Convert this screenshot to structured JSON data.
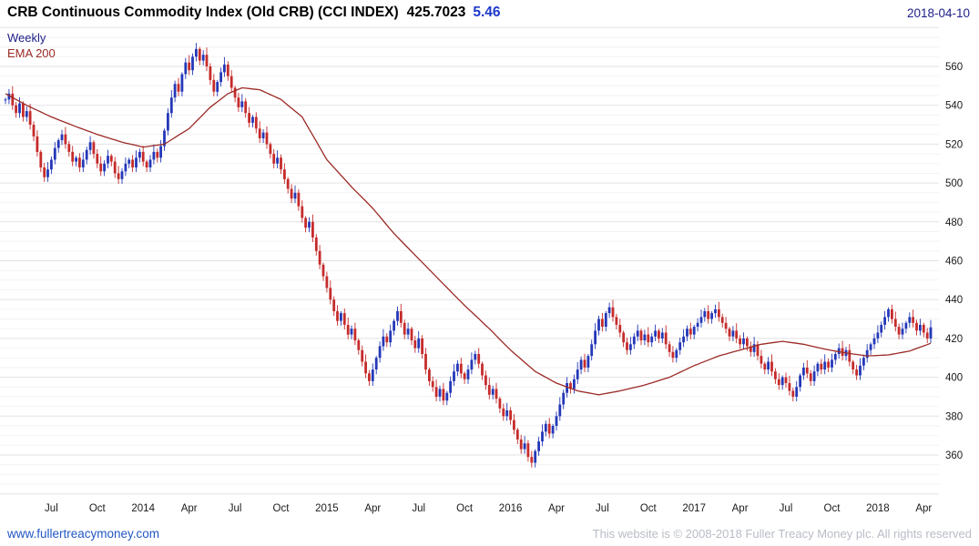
{
  "header": {
    "title": "CRB Continuous Commodity Index (Old CRB) (CCI INDEX)",
    "price": "425.7023",
    "change": "5.46",
    "date": "2018-04-10"
  },
  "legend": {
    "timeframe": "Weekly",
    "overlay": "EMA 200"
  },
  "footer": {
    "link": "www.fullertreacymoney.com",
    "copyright": "This website is © 2008-2018 Fuller Treacy Money plc. All rights reserved"
  },
  "colors": {
    "up": "#2438b8",
    "down": "#c62b2b",
    "ema": "#9a2a25",
    "grid_major": "#e2e2e2",
    "grid_minor": "#f2f2f2",
    "axis_text": "#1a1a1a",
    "change": "#1c39cc",
    "date": "#20208a",
    "link": "#2257c4",
    "copyright": "#b8bcc6"
  },
  "chart_data": {
    "type": "candlestick",
    "title": "CRB Continuous Commodity Index (Old CRB) (CCI INDEX)",
    "timeframe": "Weekly",
    "overlay": "EMA 200",
    "last": {
      "value": 425.7023,
      "change": 5.46,
      "date": "2018-04-10"
    },
    "y_axis": {
      "position": "right",
      "tick_start": 360,
      "tick_end": 560,
      "tick_step": 20,
      "minor_step": 5,
      "plot_min": 340,
      "plot_max": 580
    },
    "x_axis": {
      "labels": [
        {
          "text": "Jul",
          "week": 13
        },
        {
          "text": "Oct",
          "week": 26
        },
        {
          "text": "2014",
          "week": 39
        },
        {
          "text": "Apr",
          "week": 52
        },
        {
          "text": "Jul",
          "week": 65
        },
        {
          "text": "Oct",
          "week": 78
        },
        {
          "text": "2015",
          "week": 91
        },
        {
          "text": "Apr",
          "week": 104
        },
        {
          "text": "Jul",
          "week": 117
        },
        {
          "text": "Oct",
          "week": 130
        },
        {
          "text": "2016",
          "week": 143
        },
        {
          "text": "Apr",
          "week": 156
        },
        {
          "text": "Jul",
          "week": 169
        },
        {
          "text": "Oct",
          "week": 182
        },
        {
          "text": "2017",
          "week": 195
        },
        {
          "text": "Apr",
          "week": 208
        },
        {
          "text": "Jul",
          "week": 221
        },
        {
          "text": "Oct",
          "week": 234
        },
        {
          "text": "2018",
          "week": 247
        },
        {
          "text": "Apr",
          "week": 260
        }
      ]
    },
    "weekly_closes": [
      543,
      546,
      540,
      536,
      541,
      534,
      537,
      530,
      524,
      516,
      508,
      503,
      507,
      512,
      518,
      522,
      525,
      520,
      516,
      511,
      513,
      508,
      512,
      517,
      521,
      515,
      510,
      506,
      510,
      514,
      511,
      505,
      502,
      506,
      510,
      512,
      508,
      513,
      516,
      511,
      508,
      512,
      516,
      513,
      519,
      527,
      536,
      544,
      551,
      547,
      556,
      562,
      558,
      565,
      569,
      563,
      566,
      560,
      553,
      547,
      552,
      557,
      561,
      555,
      549,
      544,
      539,
      542,
      536,
      531,
      534,
      528,
      523,
      526,
      520,
      515,
      510,
      513,
      507,
      502,
      497,
      492,
      495,
      488,
      482,
      477,
      480,
      472,
      465,
      458,
      452,
      446,
      440,
      434,
      429,
      433,
      427,
      422,
      425,
      419,
      414,
      408,
      402,
      398,
      404,
      410,
      416,
      421,
      418,
      424,
      429,
      434,
      428,
      422,
      425,
      419,
      415,
      420,
      412,
      404,
      398,
      395,
      390,
      394,
      388,
      392,
      398,
      403,
      407,
      402,
      399,
      404,
      409,
      412,
      407,
      401,
      396,
      391,
      394,
      389,
      384,
      380,
      383,
      378,
      373,
      368,
      363,
      366,
      359,
      356,
      362,
      367,
      372,
      376,
      371,
      375,
      380,
      386,
      392,
      397,
      394,
      399,
      404,
      409,
      405,
      411,
      417,
      424,
      430,
      426,
      433,
      436,
      431,
      427,
      423,
      418,
      414,
      417,
      421,
      424,
      419,
      422,
      418,
      421,
      424,
      420,
      423,
      417,
      413,
      410,
      414,
      418,
      421,
      425,
      422,
      426,
      428,
      431,
      434,
      430,
      433,
      435,
      431,
      428,
      425,
      421,
      424,
      420,
      417,
      420,
      416,
      413,
      417,
      411,
      407,
      404,
      408,
      403,
      399,
      396,
      400,
      397,
      393,
      390,
      395,
      401,
      405,
      402,
      398,
      403,
      407,
      404,
      408,
      405,
      409,
      412,
      415,
      411,
      414,
      408,
      404,
      401,
      406,
      410,
      414,
      417,
      420,
      423,
      427,
      431,
      435,
      430,
      426,
      422,
      425,
      428,
      431,
      428,
      424,
      427,
      423,
      420,
      425.7
    ],
    "ema_200_anchors": [
      [
        0,
        546
      ],
      [
        6,
        540
      ],
      [
        13,
        534
      ],
      [
        20,
        529
      ],
      [
        26,
        525
      ],
      [
        33,
        521
      ],
      [
        39,
        518.5
      ],
      [
        45,
        520
      ],
      [
        52,
        528
      ],
      [
        58,
        539
      ],
      [
        63,
        546
      ],
      [
        67,
        549
      ],
      [
        72,
        548
      ],
      [
        78,
        543
      ],
      [
        84,
        534
      ],
      [
        91,
        512
      ],
      [
        98,
        498
      ],
      [
        104,
        487
      ],
      [
        110,
        474
      ],
      [
        117,
        461
      ],
      [
        124,
        448
      ],
      [
        130,
        437
      ],
      [
        137,
        425
      ],
      [
        143,
        414
      ],
      [
        150,
        403
      ],
      [
        156,
        397
      ],
      [
        162,
        393
      ],
      [
        168,
        391
      ],
      [
        174,
        393
      ],
      [
        181,
        396
      ],
      [
        188,
        400
      ],
      [
        195,
        406
      ],
      [
        202,
        411
      ],
      [
        208,
        414
      ],
      [
        214,
        417
      ],
      [
        220,
        418.5
      ],
      [
        226,
        417
      ],
      [
        232,
        414.5
      ],
      [
        238,
        412.5
      ],
      [
        244,
        411
      ],
      [
        250,
        411.5
      ],
      [
        256,
        413.5
      ],
      [
        262,
        417.5
      ]
    ]
  }
}
